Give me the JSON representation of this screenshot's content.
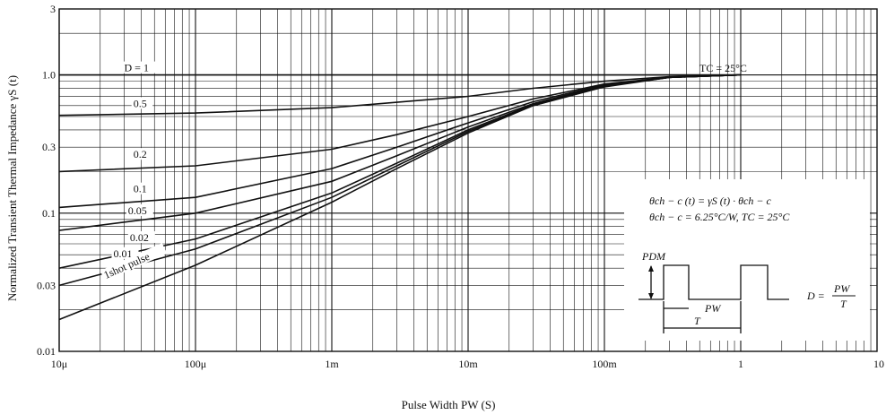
{
  "chart_data": {
    "type": "line",
    "title": "",
    "xlabel": "Pulse Width PW (S)",
    "ylabel": "Normalized Transient Thermal Impedance γS (t)",
    "x_scale": "log",
    "y_scale": "log",
    "xlim": [
      1e-05,
      10
    ],
    "ylim": [
      0.01,
      3
    ],
    "grid": true,
    "x_ticks": [
      {
        "value": 1e-05,
        "label": "10μ"
      },
      {
        "value": 0.0001,
        "label": "100μ"
      },
      {
        "value": 0.001,
        "label": "1m"
      },
      {
        "value": 0.01,
        "label": "10m"
      },
      {
        "value": 0.1,
        "label": "100m"
      },
      {
        "value": 1,
        "label": "1"
      },
      {
        "value": 10,
        "label": "10"
      }
    ],
    "y_ticks": [
      {
        "value": 0.01,
        "label": "0.01"
      },
      {
        "value": 0.03,
        "label": "0.03"
      },
      {
        "value": 0.1,
        "label": "0.1"
      },
      {
        "value": 0.3,
        "label": "0.3"
      },
      {
        "value": 1.0,
        "label": "1.0"
      },
      {
        "value": 3,
        "label": "3"
      }
    ],
    "series": [
      {
        "name": "D = 1",
        "x": [
          1e-05,
          1
        ],
        "y": [
          1.0,
          1.0
        ]
      },
      {
        "name": "0.5",
        "x": [
          1e-05,
          0.0001,
          0.001,
          0.01,
          0.03,
          0.1,
          0.3,
          1
        ],
        "y": [
          0.51,
          0.53,
          0.58,
          0.7,
          0.8,
          0.9,
          0.97,
          1.0
        ]
      },
      {
        "name": "0.2",
        "x": [
          1e-05,
          0.0001,
          0.001,
          0.003,
          0.01,
          0.03,
          0.1,
          0.3,
          1
        ],
        "y": [
          0.2,
          0.22,
          0.29,
          0.37,
          0.5,
          0.67,
          0.86,
          0.96,
          1.0
        ]
      },
      {
        "name": "0.1",
        "x": [
          1e-05,
          0.0001,
          0.001,
          0.003,
          0.01,
          0.03,
          0.1,
          0.3,
          1
        ],
        "y": [
          0.11,
          0.13,
          0.21,
          0.3,
          0.45,
          0.64,
          0.85,
          0.96,
          1.0
        ]
      },
      {
        "name": "0.05",
        "x": [
          1e-05,
          0.0001,
          0.001,
          0.003,
          0.01,
          0.03,
          0.1,
          0.3,
          1
        ],
        "y": [
          0.075,
          0.1,
          0.17,
          0.26,
          0.42,
          0.62,
          0.84,
          0.96,
          1.0
        ]
      },
      {
        "name": "0.02",
        "x": [
          1e-05,
          0.0001,
          0.001,
          0.003,
          0.01,
          0.03,
          0.1,
          0.3,
          1
        ],
        "y": [
          0.04,
          0.065,
          0.14,
          0.23,
          0.4,
          0.61,
          0.83,
          0.96,
          1.0
        ]
      },
      {
        "name": "0.01",
        "x": [
          1e-05,
          0.0001,
          0.001,
          0.003,
          0.01,
          0.03,
          0.1,
          0.3,
          1
        ],
        "y": [
          0.03,
          0.055,
          0.13,
          0.22,
          0.39,
          0.6,
          0.83,
          0.96,
          1.0
        ]
      },
      {
        "name": "1shot pulse",
        "x": [
          1e-05,
          0.0001,
          0.001,
          0.003,
          0.01,
          0.03,
          0.1,
          0.3,
          1
        ],
        "y": [
          0.017,
          0.042,
          0.12,
          0.21,
          0.38,
          0.6,
          0.82,
          0.96,
          1.0
        ]
      }
    ],
    "annotations": {
      "tc_label": "TC = 25°C",
      "formula_1": "θch − c (t) = γS (t) · θch − c",
      "formula_2": "θch − c = 6.25°C/W, TC = 25°C",
      "pulse_pdm": "PDM",
      "pulse_pw": "PW",
      "pulse_t": "T",
      "duty_lhs": "D =",
      "duty_num": "PW",
      "duty_den": "T"
    }
  }
}
